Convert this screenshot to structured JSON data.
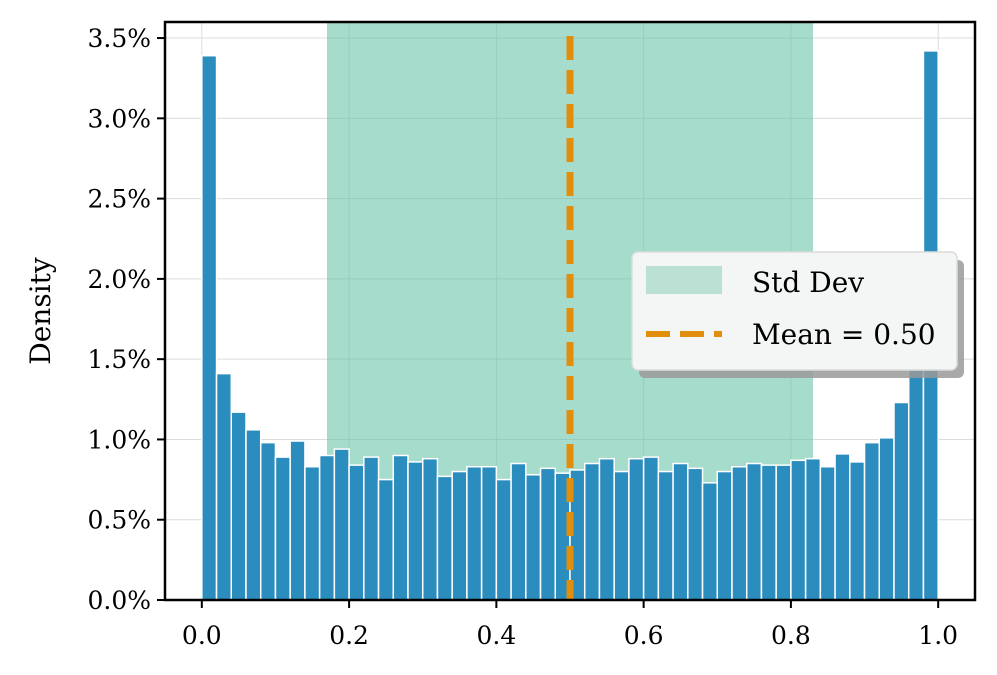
{
  "chart_data": {
    "type": "bar",
    "title": "",
    "xlabel": "",
    "ylabel": "Density",
    "xlim": [
      -0.05,
      1.05
    ],
    "ylim": [
      0,
      3.6
    ],
    "y_unit": "%",
    "xticks": [
      0.0,
      0.2,
      0.4,
      0.6,
      0.8,
      1.0
    ],
    "xtick_labels": [
      "0.0",
      "0.2",
      "0.4",
      "0.6",
      "0.8",
      "1.0"
    ],
    "yticks": [
      0.0,
      0.5,
      1.0,
      1.5,
      2.0,
      2.5,
      3.0,
      3.5
    ],
    "ytick_labels": [
      "0.0%",
      "0.5%",
      "1.0%",
      "1.5%",
      "2.0%",
      "2.5%",
      "3.0%",
      "3.5%"
    ],
    "grid": true,
    "bin_width": 0.02,
    "bins_start": [
      0.0,
      0.02,
      0.04,
      0.06,
      0.08,
      0.1,
      0.12,
      0.14,
      0.16,
      0.18,
      0.2,
      0.22,
      0.24,
      0.26,
      0.28,
      0.3,
      0.32,
      0.34,
      0.36,
      0.38,
      0.4,
      0.42,
      0.44,
      0.46,
      0.48,
      0.5,
      0.52,
      0.54,
      0.56,
      0.58,
      0.6,
      0.62,
      0.64,
      0.66,
      0.68,
      0.7,
      0.72,
      0.74,
      0.76,
      0.78,
      0.8,
      0.82,
      0.84,
      0.86,
      0.88,
      0.9,
      0.92,
      0.94,
      0.96,
      0.98
    ],
    "values": [
      3.39,
      1.41,
      1.17,
      1.06,
      0.98,
      0.89,
      0.99,
      0.83,
      0.9,
      0.94,
      0.84,
      0.89,
      0.75,
      0.9,
      0.86,
      0.88,
      0.77,
      0.8,
      0.83,
      0.83,
      0.75,
      0.85,
      0.78,
      0.82,
      0.79,
      0.81,
      0.85,
      0.88,
      0.8,
      0.88,
      0.89,
      0.8,
      0.85,
      0.82,
      0.73,
      0.8,
      0.83,
      0.85,
      0.84,
      0.84,
      0.87,
      0.88,
      0.83,
      0.91,
      0.86,
      0.98,
      1.01,
      1.23,
      1.53,
      3.42
    ],
    "bar_color": "#2b8cbe",
    "std_dev_band": {
      "label": "Std Dev",
      "x_range": [
        0.17,
        0.83
      ],
      "color": "#66c2a5"
    },
    "mean_line": {
      "label": "Mean = 0.50",
      "x": 0.5,
      "color": "#e08e0b",
      "style": "dashed"
    },
    "legend": {
      "placement": "center-right",
      "entries": [
        "Std Dev",
        "Mean = 0.50"
      ]
    }
  }
}
